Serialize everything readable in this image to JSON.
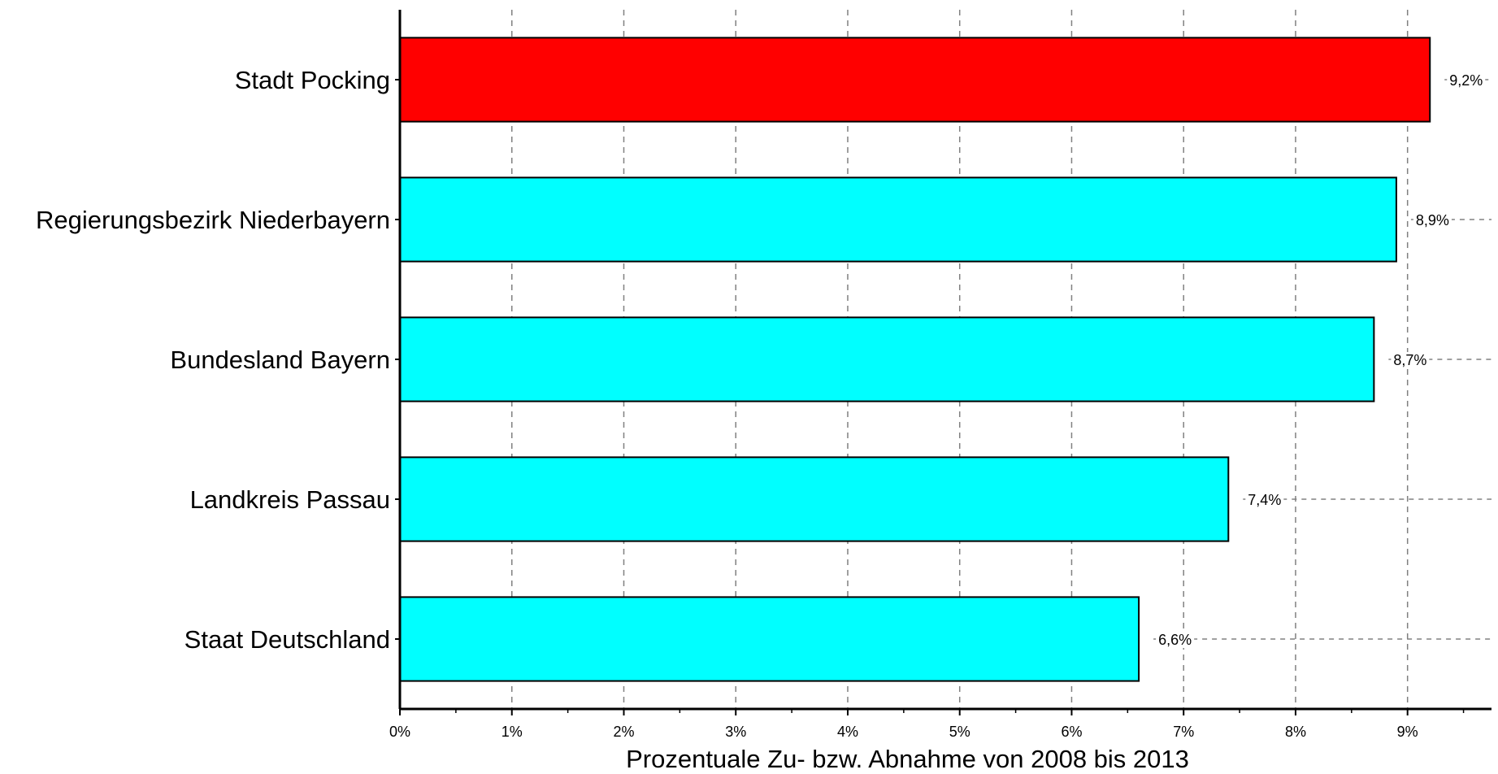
{
  "chart_data": {
    "type": "bar",
    "orientation": "horizontal",
    "categories": [
      "Stadt Pocking",
      "Regierungsbezirk Niederbayern",
      "Bundesland Bayern",
      "Landkreis Passau",
      "Staat Deutschland"
    ],
    "values": [
      9.2,
      8.9,
      8.7,
      7.4,
      6.6
    ],
    "data_labels": [
      "9,2%",
      "8,9%",
      "8,7%",
      "7,4%",
      "6,6%"
    ],
    "bar_colors": [
      "#ff0000",
      "#00ffff",
      "#00ffff",
      "#00ffff",
      "#00ffff"
    ],
    "xlabel": "Prozentuale Zu- bzw. Abnahme von 2008 bis 2013",
    "ylabel": "",
    "xlim": [
      0,
      9.75
    ],
    "x_ticks": [
      0,
      1,
      2,
      3,
      4,
      5,
      6,
      7,
      8,
      9
    ],
    "x_tick_labels": [
      "0%",
      "1%",
      "2%",
      "3%",
      "4%",
      "5%",
      "6%",
      "7%",
      "8%",
      "9%"
    ],
    "grid": "vertical-and-label-rows-dashed"
  }
}
